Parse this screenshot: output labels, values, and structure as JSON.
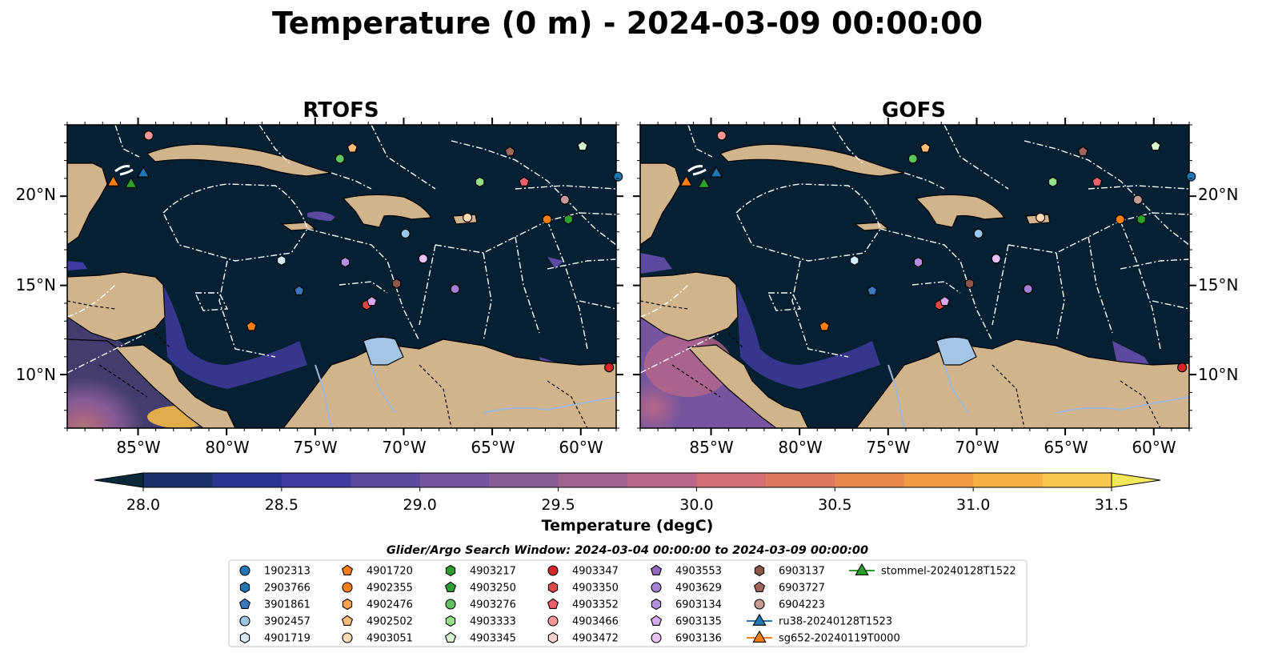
{
  "figure": {
    "title": "Temperature (0 m) - 2024-03-09 00:00:00",
    "search_window": "Glider/Argo Search Window: 2024-03-04 00:00:00 to 2024-03-09 00:00:00"
  },
  "colorbar": {
    "label": "Temperature (degC)",
    "min": 28.0,
    "max": 31.5,
    "step": 0.25,
    "ticks": [
      "28.0",
      "28.5",
      "29.0",
      "29.5",
      "30.0",
      "30.5",
      "31.0",
      "31.5"
    ],
    "extend": "both",
    "colors": [
      "#0a2a3c",
      "#1b2f6a",
      "#2d3592",
      "#403b9e",
      "#5b4aa0",
      "#74559e",
      "#8a5d96",
      "#a0628f",
      "#b8678a",
      "#d06f76",
      "#e0785f",
      "#ea874c",
      "#f29a3f",
      "#f5af42",
      "#f6c94b",
      "#f3e65c"
    ]
  },
  "chart_data": [
    {
      "type": "map",
      "title": "RTOFS",
      "lon_range": [
        -89,
        -58
      ],
      "lat_range": [
        7,
        24
      ],
      "lon_tick_labels": [
        "85°W",
        "80°W",
        "75°W",
        "70°W",
        "65°W",
        "60°W"
      ],
      "lat_tick_labels": [
        "10°N",
        "15°N",
        "20°N"
      ],
      "lat_labels_side": "left"
    },
    {
      "type": "map",
      "title": "GOFS",
      "lon_range": [
        -89,
        -58
      ],
      "lat_range": [
        7,
        24
      ],
      "lon_tick_labels": [
        "85°W",
        "80°W",
        "75°W",
        "70°W",
        "65°W",
        "60°W"
      ],
      "lat_tick_labels": [
        "10°N",
        "15°N",
        "20°N"
      ],
      "lat_labels_side": "right"
    }
  ],
  "colors": {
    "ocean": "#052033",
    "land": "#d2b48c",
    "lake": "#a4c6e6",
    "river": "#9fb7d4"
  },
  "platforms": [
    {
      "label": "1902313",
      "marker": "circle",
      "color": "#1f77b4",
      "lon": -57.9,
      "lat": 21.1
    },
    {
      "label": "2903766",
      "marker": "hexagon",
      "color": "#1f77b4",
      "lon": null,
      "lat": null
    },
    {
      "label": "3901861",
      "marker": "pentagon",
      "color": "#3a78c0",
      "lon": -75.9,
      "lat": 14.7
    },
    {
      "label": "3902457",
      "marker": "circle",
      "color": "#9cc6ea",
      "lon": -69.9,
      "lat": 17.9
    },
    {
      "label": "4901719",
      "marker": "hexagon",
      "color": "#d5e8f8",
      "lon": -76.9,
      "lat": 16.4
    },
    {
      "label": "4901720",
      "marker": "pentagon",
      "color": "#ff7f0e",
      "lon": -78.6,
      "lat": 12.7
    },
    {
      "label": "4902355",
      "marker": "circle",
      "color": "#ff7f0e",
      "lon": -61.9,
      "lat": 18.7
    },
    {
      "label": "4902476",
      "marker": "hexagon",
      "color": "#ffa04a",
      "lon": null,
      "lat": null
    },
    {
      "label": "4902502",
      "marker": "pentagon",
      "color": "#ffbb78",
      "lon": -72.9,
      "lat": 22.7
    },
    {
      "label": "4903051",
      "marker": "circle",
      "color": "#ffd9b3",
      "lon": -66.4,
      "lat": 18.8
    },
    {
      "label": "4903217",
      "marker": "hexagon",
      "color": "#2ca02c",
      "lon": -60.7,
      "lat": 18.7
    },
    {
      "label": "4903250",
      "marker": "pentagon",
      "color": "#2ca02c",
      "lon": null,
      "lat": null
    },
    {
      "label": "4903276",
      "marker": "circle",
      "color": "#5fc45f",
      "lon": -73.6,
      "lat": 22.1
    },
    {
      "label": "4903333",
      "marker": "hexagon",
      "color": "#98df8a",
      "lon": -65.7,
      "lat": 20.8
    },
    {
      "label": "4903345",
      "marker": "pentagon",
      "color": "#d7f7cf",
      "lon": -59.9,
      "lat": 22.8
    },
    {
      "label": "4903347",
      "marker": "circle",
      "color": "#d62728",
      "lon": -58.4,
      "lat": 10.4
    },
    {
      "label": "4903350",
      "marker": "hexagon",
      "color": "#e04848",
      "lon": -72.1,
      "lat": 13.9
    },
    {
      "label": "4903352",
      "marker": "pentagon",
      "color": "#f0606a",
      "lon": -63.2,
      "lat": 20.8
    },
    {
      "label": "4903466",
      "marker": "circle",
      "color": "#ff9896",
      "lon": -84.4,
      "lat": 23.4
    },
    {
      "label": "4903472",
      "marker": "hexagon",
      "color": "#ffd0d0",
      "lon": null,
      "lat": null
    },
    {
      "label": "4903553",
      "marker": "pentagon",
      "color": "#9467bd",
      "lon": null,
      "lat": null
    },
    {
      "label": "4903629",
      "marker": "circle",
      "color": "#a57fd0",
      "lon": -67.1,
      "lat": 14.8
    },
    {
      "label": "6903134",
      "marker": "hexagon",
      "color": "#b68ee0",
      "lon": -73.3,
      "lat": 16.3
    },
    {
      "label": "6903135",
      "marker": "pentagon",
      "color": "#d5a8f0",
      "lon": -71.8,
      "lat": 14.1
    },
    {
      "label": "6903136",
      "marker": "circle",
      "color": "#eac2f8",
      "lon": -68.9,
      "lat": 16.5
    },
    {
      "label": "6903137",
      "marker": "hexagon",
      "color": "#8c564b",
      "lon": -70.4,
      "lat": 15.1
    },
    {
      "label": "6903727",
      "marker": "pentagon",
      "color": "#a0675c",
      "lon": -64.0,
      "lat": 22.5
    },
    {
      "label": "6904223",
      "marker": "circle",
      "color": "#c49c94",
      "lon": -60.9,
      "lat": 19.8
    },
    {
      "label": "ru38-20240128T1523",
      "marker": "triangle",
      "color": "#1f77b4",
      "lon": -84.7,
      "lat": 21.3
    },
    {
      "label": "sg652-20240119T0000",
      "marker": "triangle",
      "color": "#ff7f0e",
      "lon": -86.4,
      "lat": 20.8
    },
    {
      "label": "stommel-20240128T1522",
      "marker": "triangle",
      "color": "#2ca02c",
      "lon": -85.4,
      "lat": 20.7
    }
  ],
  "gliders_with_tracks": [
    "ru38-20240128T1523",
    "sg652-20240119T0000",
    "stommel-20240128T1522"
  ]
}
